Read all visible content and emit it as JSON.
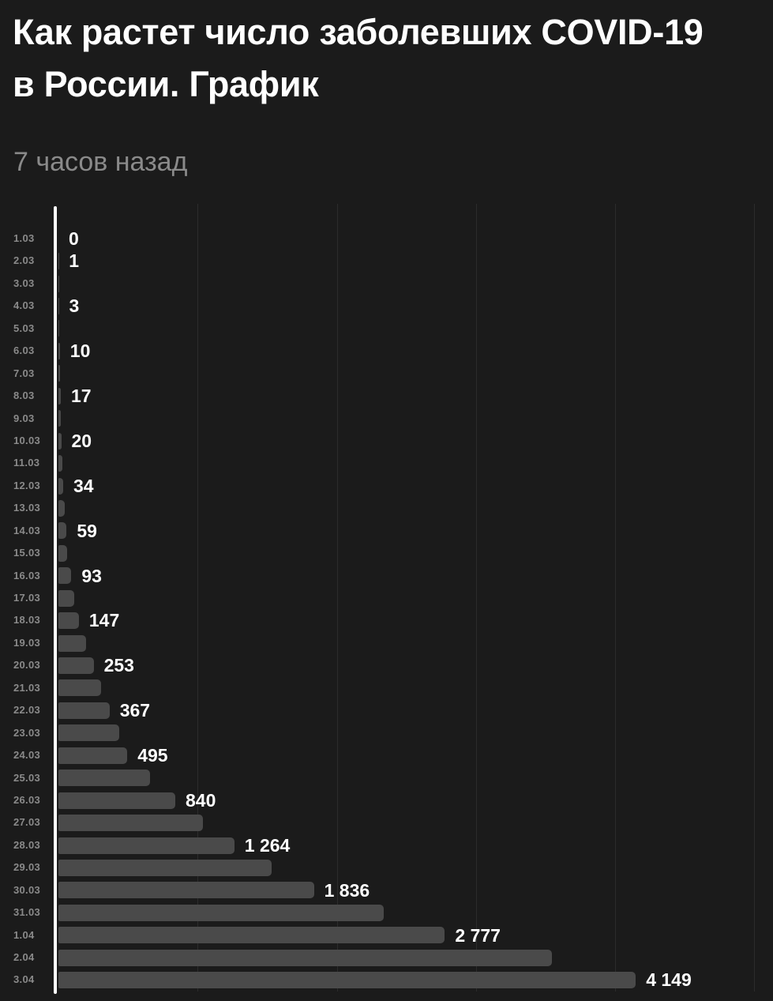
{
  "header": {
    "title": "Как растет число заболевших COVID-19 в России. График",
    "timestamp": "7 часов назад"
  },
  "colors": {
    "background": "#1b1b1b",
    "title-text": "#ffffff",
    "timestamp-text": "#8a8a8a",
    "date-label": "#8a8a8a",
    "value-label": "#ffffff",
    "bar": "#4a4a4a",
    "axis-line": "#ffffff",
    "gridline": "#2c2c2c"
  },
  "chart_data": {
    "type": "bar",
    "orientation": "horizontal",
    "grid": true,
    "axis_tick_labels_shown": false,
    "xlim": [
      0,
      5135
    ],
    "gridline_values": [
      1000,
      2000,
      3000,
      4000,
      5000
    ],
    "points": [
      {
        "date": "1.03",
        "value": 0,
        "label": "0"
      },
      {
        "date": "2.03",
        "value": 1,
        "label": "1"
      },
      {
        "date": "3.03",
        "value": 1,
        "label": null
      },
      {
        "date": "4.03",
        "value": 3,
        "label": "3"
      },
      {
        "date": "5.03",
        "value": 4,
        "label": null
      },
      {
        "date": "6.03",
        "value": 10,
        "label": "10"
      },
      {
        "date": "7.03",
        "value": 14,
        "label": null
      },
      {
        "date": "8.03",
        "value": 17,
        "label": "17"
      },
      {
        "date": "9.03",
        "value": 17,
        "label": null
      },
      {
        "date": "10.03",
        "value": 20,
        "label": "20"
      },
      {
        "date": "11.03",
        "value": 28,
        "label": null
      },
      {
        "date": "12.03",
        "value": 34,
        "label": "34"
      },
      {
        "date": "13.03",
        "value": 45,
        "label": null
      },
      {
        "date": "14.03",
        "value": 59,
        "label": "59"
      },
      {
        "date": "15.03",
        "value": 63,
        "label": null
      },
      {
        "date": "16.03",
        "value": 93,
        "label": "93"
      },
      {
        "date": "17.03",
        "value": 114,
        "label": null
      },
      {
        "date": "18.03",
        "value": 147,
        "label": "147"
      },
      {
        "date": "19.03",
        "value": 199,
        "label": null
      },
      {
        "date": "20.03",
        "value": 253,
        "label": "253"
      },
      {
        "date": "21.03",
        "value": 306,
        "label": null
      },
      {
        "date": "22.03",
        "value": 367,
        "label": "367"
      },
      {
        "date": "23.03",
        "value": 438,
        "label": null
      },
      {
        "date": "24.03",
        "value": 495,
        "label": "495"
      },
      {
        "date": "25.03",
        "value": 658,
        "label": null
      },
      {
        "date": "26.03",
        "value": 840,
        "label": "840"
      },
      {
        "date": "27.03",
        "value": 1036,
        "label": null
      },
      {
        "date": "28.03",
        "value": 1264,
        "label": "1 264"
      },
      {
        "date": "29.03",
        "value": 1534,
        "label": null
      },
      {
        "date": "30.03",
        "value": 1836,
        "label": "1 836"
      },
      {
        "date": "31.03",
        "value": 2337,
        "label": null
      },
      {
        "date": "1.04",
        "value": 2777,
        "label": "2 777"
      },
      {
        "date": "2.04",
        "value": 3548,
        "label": null
      },
      {
        "date": "3.04",
        "value": 4149,
        "label": "4 149"
      }
    ]
  }
}
